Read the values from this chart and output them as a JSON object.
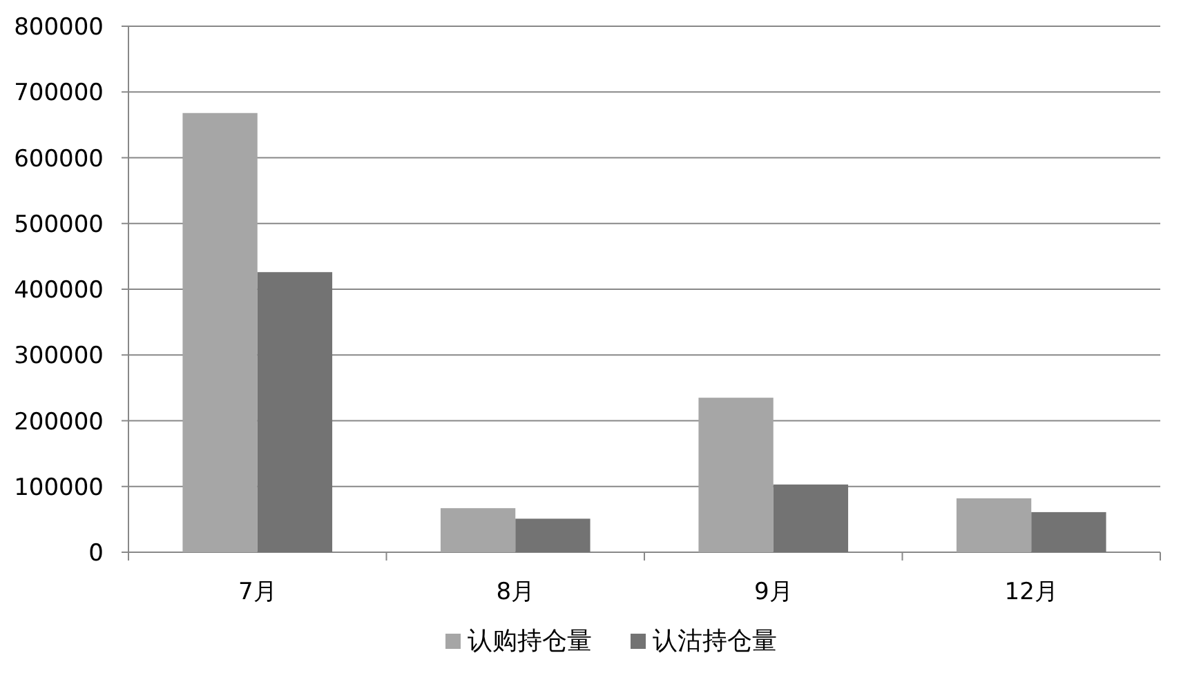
{
  "chart_data": {
    "type": "bar",
    "categories": [
      "7月",
      "8月",
      "9月",
      "12月"
    ],
    "series": [
      {
        "name": "认购持仓量",
        "color": "#a6a6a6",
        "values": [
          668000,
          67000,
          235000,
          82000
        ]
      },
      {
        "name": "认沽持仓量",
        "color": "#737373",
        "values": [
          426000,
          51000,
          103000,
          61000
        ]
      }
    ],
    "ylim": [
      0,
      800000
    ],
    "yticks": [
      0,
      100000,
      200000,
      300000,
      400000,
      500000,
      600000,
      700000,
      800000
    ],
    "grid": "y",
    "legend": "bottom"
  }
}
